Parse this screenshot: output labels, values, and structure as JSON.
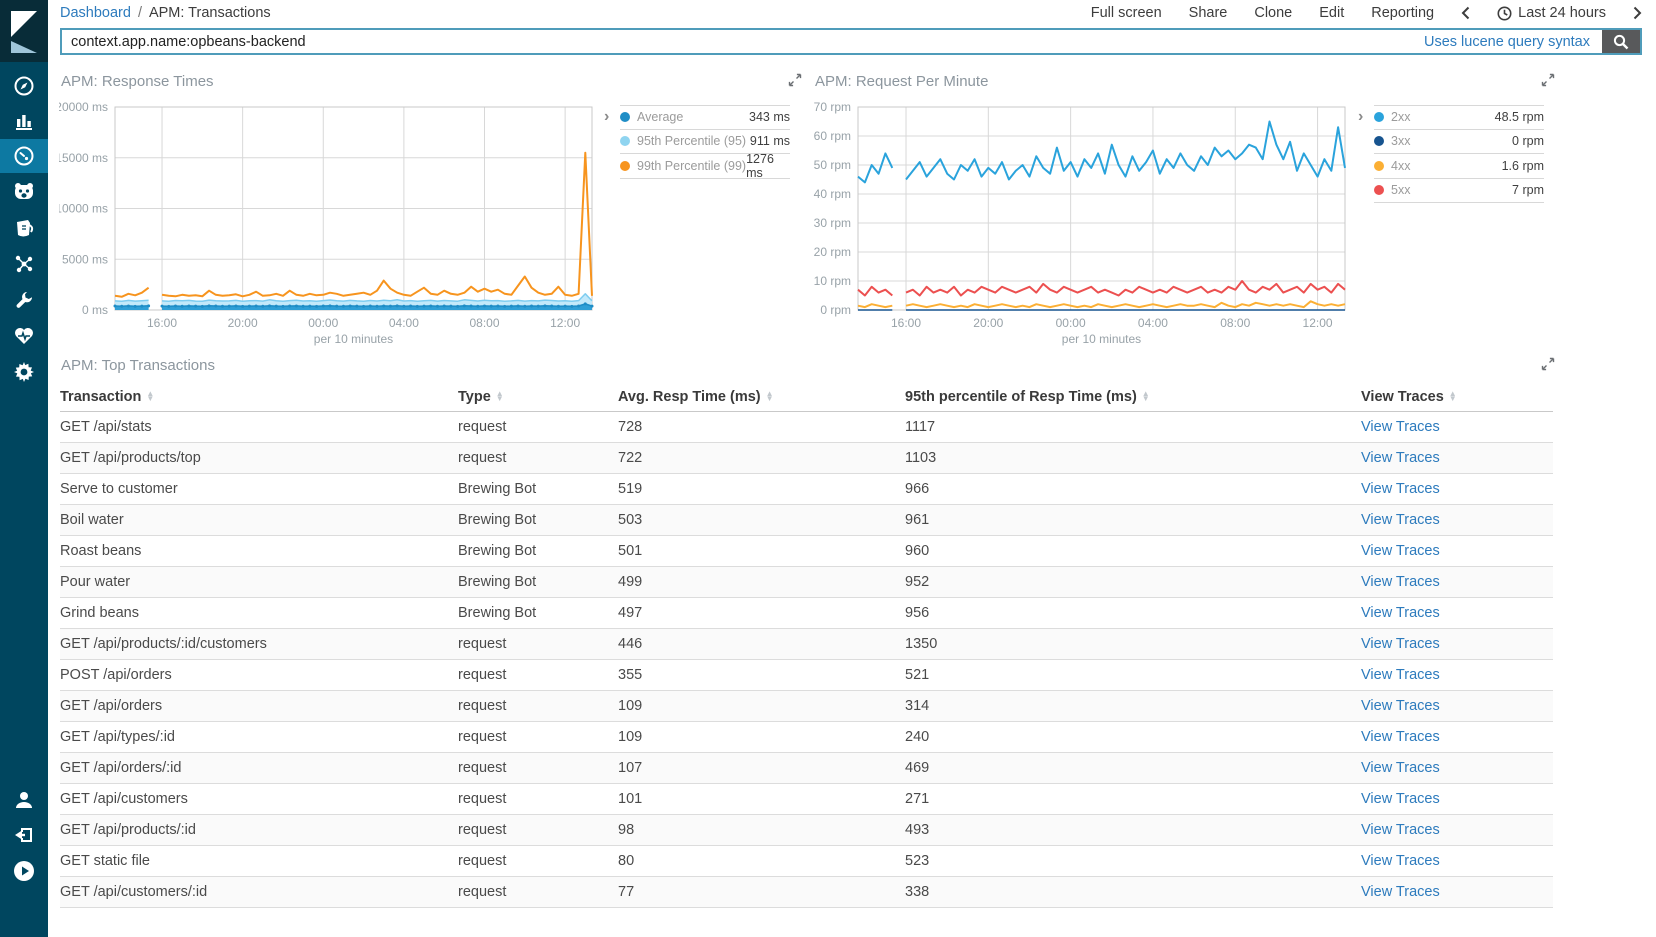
{
  "header": {
    "breadcrumb": {
      "link": "Dashboard",
      "separator": "/",
      "current": "APM: Transactions"
    },
    "menu": [
      "Full screen",
      "Share",
      "Clone",
      "Edit",
      "Reporting"
    ],
    "time_label": "Last 24 hours"
  },
  "search": {
    "value": "context.app.name:opbeans-backend",
    "hint": "Uses lucene query syntax"
  },
  "sidebar": {
    "items": [
      "compass",
      "bar-chart",
      "gauge",
      "face",
      "pitcher",
      "graph-nodes",
      "wrench",
      "heart-pulse",
      "gear"
    ],
    "active_index": 2,
    "bottom_items": [
      "user",
      "logout",
      "collapse-play"
    ]
  },
  "colors": {
    "sidebar_bg": "#00465f",
    "sidebar_active": "#0d79a2",
    "link_blue": "#2d7bbd",
    "search_border": "#4f9cba",
    "search_button": "#58595b",
    "avg_blue": "#1f8dc6",
    "p95_light_blue": "#8fd4f0",
    "p99_orange": "#f7941e",
    "rpm_2xx": "#2aa3dc",
    "rpm_3xx": "#17548f",
    "rpm_4xx": "#fbaf34",
    "rpm_5xx": "#ec5050"
  },
  "panels": {
    "response_times": {
      "title": "APM: Response Times",
      "legend": [
        {
          "label": "Average",
          "value": "343 ms",
          "color": "#1f8dc6"
        },
        {
          "label": "95th Percentile (95)",
          "value": "911 ms",
          "color": "#8fd4f0"
        },
        {
          "label": "99th Percentile (99)",
          "value": "1276 ms",
          "color": "#f7941e"
        }
      ]
    },
    "request_per_minute": {
      "title": "APM: Request Per Minute",
      "legend": [
        {
          "label": "2xx",
          "value": "48.5 rpm",
          "color": "#2aa3dc"
        },
        {
          "label": "3xx",
          "value": "0 rpm",
          "color": "#17548f"
        },
        {
          "label": "4xx",
          "value": "1.6 rpm",
          "color": "#fbaf34"
        },
        {
          "label": "5xx",
          "value": "7 rpm",
          "color": "#ec5050"
        }
      ]
    },
    "top_transactions": {
      "title": "APM: Top Transactions"
    }
  },
  "chart_data": [
    {
      "type": "area",
      "title": "APM: Response Times",
      "xlabel": "per 10 minutes",
      "ylim": [
        0,
        20000
      ],
      "yticks": [
        {
          "v": 0,
          "label": "0 ms"
        },
        {
          "v": 5000,
          "label": "5000 ms"
        },
        {
          "v": 10000,
          "label": "10000 ms"
        },
        {
          "v": 15000,
          "label": "15000 ms"
        },
        {
          "v": 20000,
          "label": "20000 ms"
        }
      ],
      "xticks": [
        {
          "i": 7,
          "label": "16:00"
        },
        {
          "i": 19,
          "label": "20:00"
        },
        {
          "i": 31,
          "label": "00:00"
        },
        {
          "i": 43,
          "label": "04:00"
        },
        {
          "i": 55,
          "label": "08:00"
        },
        {
          "i": 67,
          "label": "12:00"
        }
      ],
      "series": [
        {
          "name": "95th Percentile (95)",
          "type": "area",
          "color": "#7fcdf0",
          "fill": "#c3e9fa",
          "values": [
            900,
            870,
            950,
            880,
            920,
            960,
            null,
            900,
            870,
            940,
            910,
            950,
            880,
            860,
            980,
            920,
            890,
            900,
            950,
            870,
            910,
            930,
            880,
            1000,
            920,
            870,
            930,
            960,
            890,
            910,
            870,
            930,
            990,
            920,
            880,
            950,
            900,
            870,
            940,
            890,
            960,
            910,
            1000,
            890,
            930,
            870,
            910,
            950,
            880,
            940,
            900,
            870,
            1000,
            950,
            890,
            960,
            910,
            930,
            870,
            900,
            950,
            880,
            930,
            900,
            980,
            940,
            890,
            910,
            870,
            930,
            1600,
            900
          ]
        },
        {
          "name": "Average",
          "type": "area",
          "color": "#1f8dc6",
          "fill": "#2f9fd6",
          "markers": true,
          "values": [
            390,
            370,
            400,
            360,
            380,
            410,
            null,
            380,
            360,
            390,
            370,
            400,
            380,
            360,
            410,
            390,
            370,
            380,
            400,
            360,
            380,
            390,
            370,
            410,
            380,
            360,
            390,
            400,
            370,
            380,
            360,
            390,
            410,
            380,
            370,
            400,
            380,
            360,
            390,
            370,
            400,
            380,
            410,
            370,
            390,
            360,
            380,
            400,
            370,
            390,
            380,
            360,
            410,
            390,
            370,
            400,
            380,
            390,
            360,
            380,
            400,
            370,
            390,
            380,
            410,
            390,
            370,
            380,
            360,
            390,
            600,
            380
          ]
        },
        {
          "name": "99th Percentile (99)",
          "type": "line",
          "color": "#f7941e",
          "width": 2,
          "values": [
            1400,
            1300,
            1600,
            1450,
            1700,
            2200,
            null,
            1500,
            1400,
            1350,
            1500,
            1400,
            1450,
            1350,
            1900,
            1500,
            1400,
            1450,
            1550,
            1350,
            1500,
            1800,
            1400,
            1450,
            1600,
            1400,
            1900,
            1500,
            1400,
            1600,
            1450,
            1500,
            1700,
            1600,
            1400,
            1500,
            1600,
            1700,
            1500,
            1900,
            2900,
            2100,
            1700,
            1500,
            1400,
            1800,
            2200,
            1600,
            1500,
            1900,
            1600,
            1500,
            1700,
            2300,
            1800,
            2100,
            1800,
            2000,
            1600,
            1500,
            2400,
            3300,
            2200,
            1700,
            1500,
            1600,
            2300,
            1500,
            1400,
            1600,
            15500,
            1400
          ]
        }
      ]
    },
    {
      "type": "line",
      "title": "APM: Request Per Minute",
      "xlabel": "per 10 minutes",
      "ylim": [
        0,
        70
      ],
      "yticks": [
        {
          "v": 0,
          "label": "0 rpm"
        },
        {
          "v": 10,
          "label": "10 rpm"
        },
        {
          "v": 20,
          "label": "20 rpm"
        },
        {
          "v": 30,
          "label": "30 rpm"
        },
        {
          "v": 40,
          "label": "40 rpm"
        },
        {
          "v": 50,
          "label": "50 rpm"
        },
        {
          "v": 60,
          "label": "60 rpm"
        },
        {
          "v": 70,
          "label": "70 rpm"
        }
      ],
      "xticks": [
        {
          "i": 7,
          "label": "16:00"
        },
        {
          "i": 19,
          "label": "20:00"
        },
        {
          "i": 31,
          "label": "00:00"
        },
        {
          "i": 43,
          "label": "04:00"
        },
        {
          "i": 55,
          "label": "08:00"
        },
        {
          "i": 67,
          "label": "12:00"
        }
      ],
      "series": [
        {
          "name": "3xx",
          "type": "line",
          "color": "#17548f",
          "width": 1.5,
          "values": [
            0,
            0,
            0,
            0,
            0,
            0,
            null,
            0,
            0,
            0,
            0,
            0,
            0,
            0,
            0,
            0,
            0,
            0,
            0,
            0,
            0,
            0,
            0,
            0,
            0,
            0,
            0,
            0,
            0,
            0,
            0,
            0,
            0,
            0,
            0,
            0,
            0,
            0,
            0,
            0,
            0,
            0,
            0,
            0,
            0,
            0,
            0,
            0,
            0,
            0,
            0,
            0,
            0,
            0,
            0,
            0,
            0,
            0,
            0,
            0,
            0,
            0,
            0,
            0,
            0,
            0,
            0,
            0,
            0,
            0,
            0,
            0
          ]
        },
        {
          "name": "4xx",
          "type": "line",
          "color": "#fbaf34",
          "width": 2,
          "values": [
            1.5,
            1,
            2,
            1.5,
            1,
            1.5,
            null,
            1.5,
            2,
            1.5,
            1,
            1.5,
            2,
            1.5,
            1,
            1.5,
            1,
            2,
            1.5,
            1,
            1.5,
            2,
            1.5,
            1,
            1.5,
            1,
            2,
            1.5,
            1,
            1.5,
            2,
            1.5,
            1,
            1.5,
            1,
            2,
            1.5,
            1,
            1.5,
            2,
            1.5,
            1,
            1.5,
            2,
            1.5,
            1,
            1.5,
            2,
            1.5,
            1.5,
            2,
            1.5,
            1,
            2.5,
            1.5,
            1,
            2,
            1.5,
            2.5,
            2,
            1.5,
            2,
            1.5,
            2,
            1.5,
            1,
            3,
            2,
            1.5,
            2,
            1.5,
            2
          ]
        },
        {
          "name": "5xx",
          "type": "line",
          "color": "#ec5050",
          "width": 2,
          "values": [
            7,
            5,
            8,
            6,
            7,
            5,
            null,
            6,
            7,
            5,
            8,
            6,
            7,
            6,
            8,
            5,
            7,
            6,
            8,
            7,
            6,
            8,
            7,
            6,
            7,
            8,
            6,
            9,
            7,
            6,
            8,
            7,
            6,
            7,
            8,
            6,
            7,
            6,
            5,
            7,
            6,
            8,
            7,
            6,
            7,
            6,
            8,
            7,
            6,
            7,
            8,
            6,
            7,
            6,
            8,
            7,
            10,
            7,
            6,
            8,
            7,
            9,
            6,
            7,
            8,
            6,
            9,
            7,
            8,
            6,
            9,
            7
          ]
        },
        {
          "name": "2xx",
          "type": "line",
          "color": "#2aa3dc",
          "width": 2,
          "values": [
            46,
            44,
            50,
            47,
            54,
            49,
            null,
            45,
            48,
            51,
            46,
            49,
            52,
            47,
            45,
            50,
            48,
            52,
            46,
            49,
            47,
            51,
            45,
            48,
            50,
            46,
            53,
            49,
            47,
            56,
            48,
            51,
            46,
            52,
            49,
            54,
            47,
            57,
            50,
            46,
            53,
            48,
            51,
            55,
            47,
            52,
            49,
            54,
            50,
            48,
            53,
            50,
            56,
            53,
            55,
            52,
            54,
            57,
            56,
            52,
            65,
            57,
            52,
            58,
            48,
            54,
            50,
            46,
            52,
            48,
            63,
            49
          ]
        }
      ]
    }
  ],
  "table": {
    "title": "APM: Top Transactions",
    "columns": [
      "Transaction",
      "Type",
      "Avg. Resp Time (ms)",
      "95th percentile of Resp Time (ms)",
      "View Traces"
    ],
    "link_label": "View Traces",
    "rows": [
      {
        "transaction": "GET /api/stats",
        "type": "request",
        "avg": "728",
        "p95": "1117"
      },
      {
        "transaction": "GET /api/products/top",
        "type": "request",
        "avg": "722",
        "p95": "1103"
      },
      {
        "transaction": "Serve to customer",
        "type": "Brewing Bot",
        "avg": "519",
        "p95": "966"
      },
      {
        "transaction": "Boil water",
        "type": "Brewing Bot",
        "avg": "503",
        "p95": "961"
      },
      {
        "transaction": "Roast beans",
        "type": "Brewing Bot",
        "avg": "501",
        "p95": "960"
      },
      {
        "transaction": "Pour water",
        "type": "Brewing Bot",
        "avg": "499",
        "p95": "952"
      },
      {
        "transaction": "Grind beans",
        "type": "Brewing Bot",
        "avg": "497",
        "p95": "956"
      },
      {
        "transaction": "GET /api/products/:id/customers",
        "type": "request",
        "avg": "446",
        "p95": "1350"
      },
      {
        "transaction": "POST /api/orders",
        "type": "request",
        "avg": "355",
        "p95": "521"
      },
      {
        "transaction": "GET /api/orders",
        "type": "request",
        "avg": "109",
        "p95": "314"
      },
      {
        "transaction": "GET /api/types/:id",
        "type": "request",
        "avg": "109",
        "p95": "240"
      },
      {
        "transaction": "GET /api/orders/:id",
        "type": "request",
        "avg": "107",
        "p95": "469"
      },
      {
        "transaction": "GET /api/customers",
        "type": "request",
        "avg": "101",
        "p95": "271"
      },
      {
        "transaction": "GET /api/products/:id",
        "type": "request",
        "avg": "98",
        "p95": "493"
      },
      {
        "transaction": "GET static file",
        "type": "request",
        "avg": "80",
        "p95": "523"
      },
      {
        "transaction": "GET /api/customers/:id",
        "type": "request",
        "avg": "77",
        "p95": "338"
      }
    ]
  }
}
